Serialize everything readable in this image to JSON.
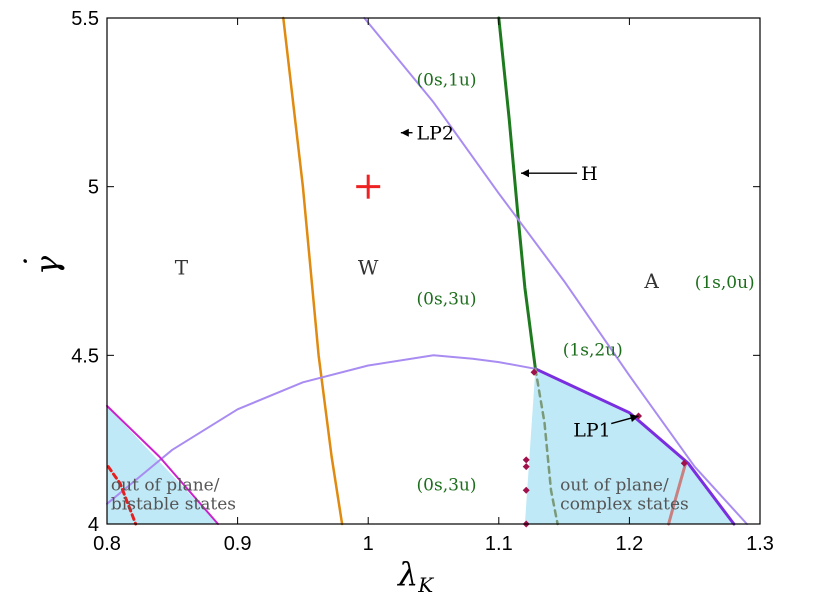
{
  "chart_data": {
    "type": "line",
    "xlabel": "λ",
    "xlabel_sub": "K",
    "ylabel": "γ",
    "ylabel_mark": "˙",
    "xlim": [
      0.8,
      1.3
    ],
    "ylim": [
      4.0,
      5.5
    ],
    "xticks": [
      {
        "value": 0.8,
        "label": "0.8"
      },
      {
        "value": 0.9,
        "label": "0.9"
      },
      {
        "value": 1.0,
        "label": "1"
      },
      {
        "value": 1.1,
        "label": "1.1"
      },
      {
        "value": 1.2,
        "label": "1.2"
      },
      {
        "value": 1.3,
        "label": "1.3"
      }
    ],
    "yticks": [
      {
        "value": 4.0,
        "label": "4"
      },
      {
        "value": 4.5,
        "label": "4.5"
      },
      {
        "value": 5.0,
        "label": "5"
      },
      {
        "value": 5.5,
        "label": "5.5"
      }
    ],
    "grid": false,
    "regions": [
      {
        "points": [
          [
            0.8,
            4.35
          ],
          [
            0.8,
            4.0
          ],
          [
            0.885,
            4.0
          ]
        ],
        "color": "#bfe9f7"
      },
      {
        "points": [
          [
            1.128,
            4.46
          ],
          [
            1.2,
            4.33
          ],
          [
            1.245,
            4.18
          ],
          [
            1.28,
            4.0
          ],
          [
            1.12,
            4.0
          ]
        ],
        "color": "#bfe9f7"
      }
    ],
    "series": [
      {
        "color": "#e08a10",
        "width": 2.5,
        "dash": "",
        "points": [
          [
            0.935,
            5.5
          ],
          [
            0.95,
            5.0
          ],
          [
            0.962,
            4.5
          ],
          [
            0.972,
            4.2
          ],
          [
            0.98,
            4.0
          ]
        ]
      },
      {
        "color": "#1e7a1e",
        "width": 3,
        "dash": "",
        "points": [
          [
            1.1,
            5.5
          ],
          [
            1.108,
            5.2
          ],
          [
            1.115,
            4.9
          ],
          [
            1.12,
            4.7
          ],
          [
            1.128,
            4.46
          ]
        ]
      },
      {
        "color": "#a98cf2",
        "width": 2,
        "dash": "",
        "points": [
          [
            0.997,
            5.5
          ],
          [
            1.05,
            5.25
          ],
          [
            1.1,
            4.98
          ],
          [
            1.15,
            4.72
          ],
          [
            1.2,
            4.44
          ],
          [
            1.25,
            4.17
          ],
          [
            1.29,
            4.0
          ]
        ]
      },
      {
        "color": "#a98cf2",
        "width": 2,
        "dash": "",
        "points": [
          [
            0.8,
            4.06
          ],
          [
            0.85,
            4.22
          ],
          [
            0.9,
            4.34
          ],
          [
            0.95,
            4.42
          ],
          [
            1.0,
            4.47
          ],
          [
            1.05,
            4.5
          ],
          [
            1.08,
            4.49
          ],
          [
            1.1,
            4.48
          ],
          [
            1.128,
            4.46
          ]
        ]
      },
      {
        "color": "#7a2ee0",
        "width": 3,
        "dash": "",
        "points": [
          [
            1.128,
            4.46
          ],
          [
            1.2,
            4.33
          ],
          [
            1.245,
            4.18
          ],
          [
            1.28,
            4.0
          ]
        ]
      },
      {
        "color": "#cc22cc",
        "width": 2,
        "dash": "",
        "points": [
          [
            0.8,
            4.35
          ],
          [
            0.84,
            4.2
          ],
          [
            0.885,
            4.0
          ]
        ]
      },
      {
        "color": "#e52020",
        "width": 3,
        "dash": "5,4",
        "points": [
          [
            0.801,
            4.17
          ],
          [
            0.81,
            4.12
          ],
          [
            0.822,
            4.0
          ]
        ]
      },
      {
        "color": "#7a9a7a",
        "width": 2.5,
        "dash": "6,5",
        "points": [
          [
            1.128,
            4.46
          ],
          [
            1.135,
            4.3
          ],
          [
            1.14,
            4.1
          ],
          [
            1.145,
            4.0
          ]
        ]
      },
      {
        "color": "#c98080",
        "width": 3,
        "dash": "",
        "points": [
          [
            1.243,
            4.18
          ],
          [
            1.235,
            4.07
          ],
          [
            1.23,
            4.0
          ]
        ]
      }
    ],
    "markers": [
      {
        "x": 1.127,
        "y": 4.45
      },
      {
        "x": 1.121,
        "y": 4.19
      },
      {
        "x": 1.121,
        "y": 4.17
      },
      {
        "x": 1.121,
        "y": 4.1
      },
      {
        "x": 1.121,
        "y": 4.0
      },
      {
        "x": 1.242,
        "y": 4.18
      },
      {
        "x": 1.207,
        "y": 4.32
      }
    ],
    "plus_marker": {
      "x": 1.0,
      "y": 5.0,
      "color": "#ee2222"
    },
    "region_labels": [
      {
        "text": "T",
        "x": 0.857,
        "y": 4.74
      },
      {
        "text": "W",
        "x": 1.0,
        "y": 4.74
      },
      {
        "text": "A",
        "x": 1.217,
        "y": 4.7
      }
    ],
    "stability_labels": [
      {
        "text": "(0s,1u)",
        "x": 1.037,
        "y": 5.3
      },
      {
        "text": "(0s,3u)",
        "x": 1.037,
        "y": 4.65
      },
      {
        "text": "(1s,0u)",
        "x": 1.25,
        "y": 4.7
      },
      {
        "text": "(1s,2u)",
        "x": 1.149,
        "y": 4.5
      },
      {
        "text": "(0s,3u)",
        "x": 1.037,
        "y": 4.1
      }
    ],
    "annotations": [
      {
        "text": "LP2",
        "tx": 1.037,
        "ty": 5.16,
        "ax": 1.025,
        "ay": 5.16
      },
      {
        "text": "H",
        "tx": 1.163,
        "ty": 5.04,
        "ax": 1.117,
        "ay": 5.04
      },
      {
        "text": "LP1",
        "tx": 1.157,
        "ty": 4.28,
        "ax": 1.207,
        "ay": 4.32
      }
    ],
    "notes": [
      {
        "lines": [
          "out of plane/",
          "bistable states"
        ],
        "x": 0.803,
        "y": 4.1
      },
      {
        "lines": [
          "out of plane/",
          "complex states"
        ],
        "x": 1.147,
        "y": 4.1
      }
    ]
  }
}
